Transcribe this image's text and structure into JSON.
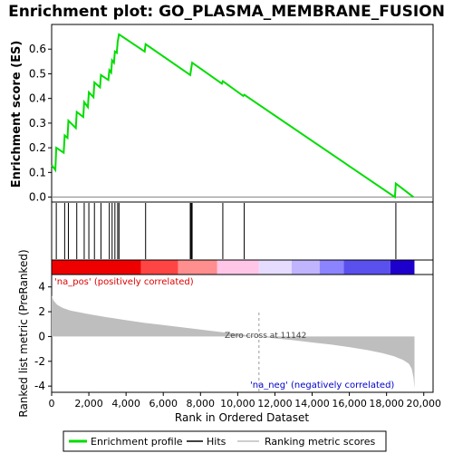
{
  "chart_data": {
    "type": "line",
    "title": "Enrichment plot: GO_PLASMA_MEMBRANE_FUSION",
    "top_panel": {
      "ylabel": "Enrichment score (ES)",
      "ylim": [
        -0.02,
        0.7
      ],
      "yticks": [
        0.0,
        0.1,
        0.2,
        0.3,
        0.4,
        0.5,
        0.6
      ],
      "ytick_labels": [
        "0.0",
        "0.1",
        "0.2",
        "0.3",
        "0.4",
        "0.5",
        "0.6"
      ],
      "line_color": "#00dd00",
      "es_curve": {
        "x": [
          0,
          100,
          200,
          250,
          650,
          700,
          850,
          900,
          1300,
          1350,
          1700,
          1750,
          1950,
          2000,
          2250,
          2300,
          2600,
          2650,
          3050,
          3100,
          3200,
          3250,
          3350,
          3400,
          3500,
          3550,
          3620,
          5000,
          5050,
          7450,
          7500,
          7550,
          9150,
          9200,
          10300,
          10350,
          18450,
          18500,
          19450
        ],
        "y": [
          0.13,
          0.12,
          0.11,
          0.2,
          0.18,
          0.25,
          0.24,
          0.31,
          0.28,
          0.345,
          0.325,
          0.385,
          0.365,
          0.425,
          0.405,
          0.465,
          0.445,
          0.495,
          0.475,
          0.515,
          0.505,
          0.555,
          0.545,
          0.59,
          0.585,
          0.63,
          0.66,
          0.59,
          0.62,
          0.495,
          0.52,
          0.545,
          0.46,
          0.47,
          0.41,
          0.415,
          0.0,
          0.055,
          0.0
        ]
      }
    },
    "hits_panel": {
      "hit_positions": [
        250,
        700,
        900,
        1350,
        1750,
        2000,
        2300,
        2650,
        3100,
        3250,
        3400,
        3550,
        3620,
        5050,
        7450,
        7500,
        7550,
        9200,
        10350,
        18500
      ],
      "hit_color": "#000000"
    },
    "ranking_bar": {
      "segments": [
        {
          "start": 0,
          "end": 4800,
          "color": "#ee0000"
        },
        {
          "start": 4800,
          "end": 6800,
          "color": "#ff4444"
        },
        {
          "start": 6800,
          "end": 8900,
          "color": "#ff8e8e"
        },
        {
          "start": 8900,
          "end": 11142,
          "color": "#ffc6e8"
        },
        {
          "start": 11142,
          "end": 12900,
          "color": "#e6dcff"
        },
        {
          "start": 12900,
          "end": 14400,
          "color": "#c0b4ff"
        },
        {
          "start": 14400,
          "end": 15700,
          "color": "#8c84ff"
        },
        {
          "start": 15700,
          "end": 18200,
          "color": "#5a50ee"
        },
        {
          "start": 18200,
          "end": 19500,
          "color": "#1e00cc"
        }
      ]
    },
    "bottom_panel": {
      "ylabel": "Ranked list metric (PreRanked)",
      "xlabel": "Rank in Ordered Dataset",
      "ylim": [
        -4.5,
        5.0
      ],
      "yticks": [
        -4,
        -2,
        0,
        2,
        4
      ],
      "ytick_labels": [
        "-4",
        "-2",
        "0",
        "2",
        "4"
      ],
      "xlim": [
        0,
        20500
      ],
      "xticks": [
        0,
        2000,
        4000,
        6000,
        8000,
        10000,
        12000,
        14000,
        16000,
        18000,
        20000
      ],
      "xtick_labels": [
        "0",
        "2,000",
        "4,000",
        "6,000",
        "8,000",
        "10,000",
        "12,000",
        "14,000",
        "16,000",
        "18,000",
        "20,000"
      ],
      "fill_color": "#bebebe",
      "metric_curve": {
        "x": [
          0,
          100,
          300,
          600,
          1000,
          1500,
          2000,
          3000,
          4000,
          5000,
          6000,
          7000,
          8000,
          9000,
          10000,
          11142,
          12000,
          13000,
          14000,
          15000,
          16000,
          17000,
          17800,
          18400,
          18900,
          19200,
          19350,
          19450,
          19500
        ],
        "y": [
          3.3,
          2.9,
          2.55,
          2.3,
          2.1,
          1.95,
          1.8,
          1.55,
          1.32,
          1.1,
          0.92,
          0.74,
          0.56,
          0.38,
          0.2,
          0.0,
          -0.15,
          -0.3,
          -0.48,
          -0.65,
          -0.85,
          -1.1,
          -1.35,
          -1.6,
          -1.9,
          -2.2,
          -2.6,
          -3.3,
          -4.2
        ]
      },
      "annotations": {
        "pos_label": "'na_pos' (positively correlated)",
        "neg_label": "'na_neg' (negatively correlated)",
        "zero_cross": "Zero cross at 11142",
        "zero_cross_x": 11142
      }
    },
    "legend": {
      "position": "bottom",
      "items": [
        {
          "label": "Enrichment profile",
          "color": "#00dd00"
        },
        {
          "label": "Hits",
          "color": "#000000"
        },
        {
          "label": "Ranking metric scores",
          "color": "#bebebe"
        }
      ]
    }
  }
}
